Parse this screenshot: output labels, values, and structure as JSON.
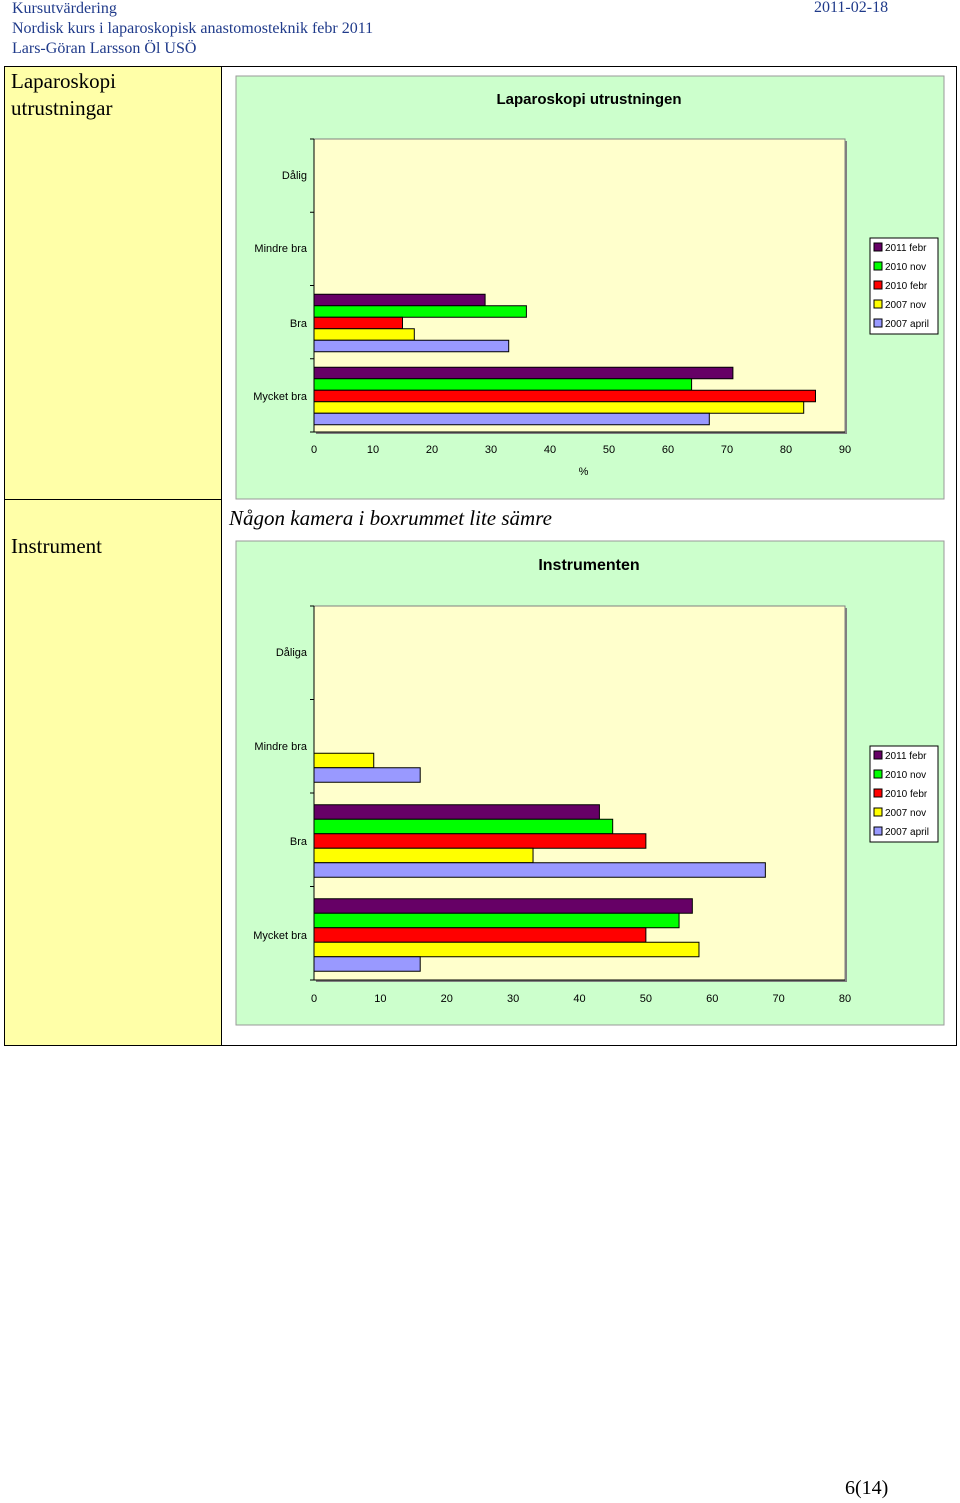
{
  "header": {
    "line1": "Kursutvärdering",
    "line2": "Nordisk kurs i laparoskopisk anastomosteknik febr 2011",
    "line3": "Lars-Göran Larsson Öl USÖ",
    "date": "2011-02-18"
  },
  "sections": {
    "first_label": "Laparoskopi utrustningar",
    "second_label": "Instrument",
    "comment": "Någon kamera i boxrummet lite sämre"
  },
  "page_number": "6(14)",
  "colors": {
    "outer_bg": "#ccffcc",
    "plot_bg": "#ffffcc",
    "label_col_bg": "#ffffa8"
  },
  "chart_data": [
    {
      "type": "bar",
      "orientation": "horizontal",
      "title": "Laparoskopi utrustningen",
      "xlabel": "%",
      "categories": [
        "Dålig",
        "Mindre bra",
        "Bra",
        "Mycket bra"
      ],
      "xlim": [
        0,
        90
      ],
      "xticks": [
        "0",
        "10",
        "20",
        "30",
        "40",
        "50",
        "60",
        "70",
        "80",
        "90"
      ],
      "legend_position": "right",
      "series": [
        {
          "name": "2011 febr",
          "color": "#660066",
          "values": [
            0,
            0,
            29,
            71
          ]
        },
        {
          "name": "2010 nov",
          "color": "#00ff00",
          "values": [
            0,
            0,
            36,
            64
          ]
        },
        {
          "name": "2010 febr",
          "color": "#ff0000",
          "values": [
            0,
            0,
            15,
            85
          ]
        },
        {
          "name": "2007 nov",
          "color": "#ffff00",
          "values": [
            0,
            0,
            17,
            83
          ]
        },
        {
          "name": "2007 april",
          "color": "#9999ff",
          "values": [
            0,
            0,
            33,
            67
          ]
        }
      ]
    },
    {
      "type": "bar",
      "orientation": "horizontal",
      "title": "Instrumenten",
      "xlabel": "",
      "categories": [
        "Dåliga",
        "Mindre bra",
        "Bra",
        "Mycket bra"
      ],
      "xlim": [
        0,
        80
      ],
      "xticks": [
        "0",
        "10",
        "20",
        "30",
        "40",
        "50",
        "60",
        "70",
        "80"
      ],
      "legend_position": "right",
      "series": [
        {
          "name": "2011 febr",
          "color": "#660066",
          "values": [
            0,
            0,
            43,
            57
          ]
        },
        {
          "name": "2010 nov",
          "color": "#00ff00",
          "values": [
            0,
            0,
            45,
            55
          ]
        },
        {
          "name": "2010 febr",
          "color": "#ff0000",
          "values": [
            0,
            0,
            50,
            50
          ]
        },
        {
          "name": "2007 nov",
          "color": "#ffff00",
          "values": [
            0,
            9,
            33,
            58
          ]
        },
        {
          "name": "2007 april",
          "color": "#9999ff",
          "values": [
            0,
            16,
            68,
            16
          ]
        }
      ]
    }
  ]
}
